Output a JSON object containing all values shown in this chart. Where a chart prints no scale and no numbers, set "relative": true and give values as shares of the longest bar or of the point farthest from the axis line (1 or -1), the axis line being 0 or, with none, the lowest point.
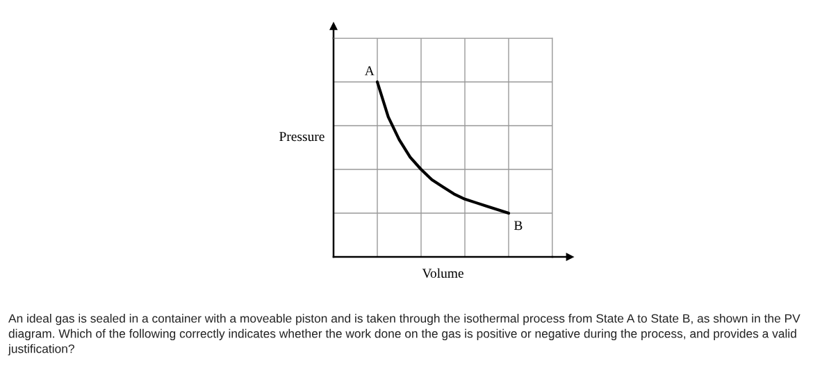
{
  "chart_data": {
    "type": "line",
    "relative": true,
    "xlabel": "Volume",
    "ylabel": "Pressure",
    "color": "#000000",
    "categories": [
      null,
      null,
      null,
      null,
      null,
      null,
      null,
      null,
      null,
      null,
      null,
      null,
      null
    ],
    "values": [
      1,
      0.8,
      0.67,
      0.57,
      0.5,
      0.44,
      0.4,
      0.36,
      0.33,
      0.31,
      0.29,
      0.27,
      0.25
    ],
    "grid": true,
    "annotations": [
      "A",
      "B",
      "An ideal gas is sealed in a container with a moveable piston and is taken through the isothermal process from State A to State B, as shown in the PV diagram. Which of the following correctly indicates whether the work done on the gas is positive or negative during the process, and provides a valid justification?"
    ]
  }
}
